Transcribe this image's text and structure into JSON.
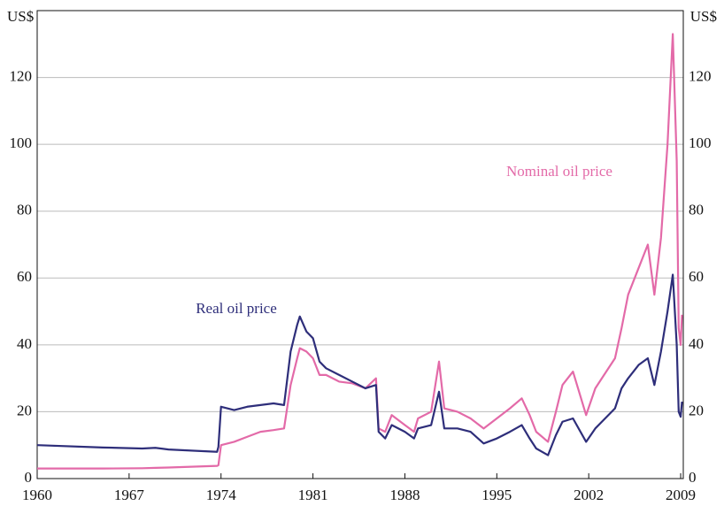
{
  "chart_data": {
    "type": "line",
    "y_label": "US$",
    "x": [
      1960,
      1965,
      1968,
      1969,
      1970,
      1973.7,
      1973.8,
      1974,
      1975,
      1976,
      1977,
      1978,
      1978.8,
      1979.3,
      1979.8,
      1980,
      1980.5,
      1981,
      1981.5,
      1982,
      1983,
      1984,
      1985,
      1985.8,
      1986,
      1986.5,
      1987,
      1988,
      1988.7,
      1989,
      1990,
      1990.6,
      1991,
      1992,
      1993,
      1994,
      1995,
      1996,
      1996.9,
      1997.5,
      1998,
      1998.9,
      1999.5,
      2000,
      2000.8,
      2001.8,
      2002.5,
      2003,
      2004,
      2004.5,
      2005,
      2005.8,
      2006.5,
      2007,
      2007.5,
      2008,
      2008.4,
      2008.7,
      2008.85,
      2009,
      2009.1
    ],
    "series": [
      {
        "name": "Real oil price",
        "color": "#2e2e7a",
        "values": [
          10,
          9.3,
          9,
          9.2,
          8.7,
          8,
          9.5,
          21.5,
          20.5,
          21.5,
          22,
          22.5,
          22,
          38,
          46,
          48.5,
          44,
          42,
          35,
          33,
          31,
          29,
          27,
          28,
          14,
          12,
          16,
          14,
          12,
          15,
          16,
          26,
          15,
          15,
          14,
          10.5,
          12,
          14,
          16,
          12,
          9,
          7,
          13,
          17,
          18,
          11,
          15,
          17,
          21,
          27,
          30,
          34,
          36,
          28,
          38,
          50,
          61,
          40,
          20,
          18.5,
          23
        ]
      },
      {
        "name": "Nominal oil price",
        "color": "#e36aa8",
        "values": [
          3,
          3,
          3.1,
          3.2,
          3.3,
          3.8,
          4,
          10,
          11,
          12.5,
          14,
          14.5,
          15,
          28,
          36,
          39,
          38,
          36,
          31,
          31,
          29,
          28.5,
          27,
          30,
          15,
          14,
          19,
          16,
          14,
          18,
          20,
          35,
          21,
          20,
          18,
          15,
          18,
          21,
          24,
          19,
          14,
          11,
          20,
          28,
          32,
          19,
          27,
          30,
          36,
          45,
          55,
          63,
          70,
          55,
          72,
          100,
          133,
          95,
          45,
          40,
          49
        ]
      }
    ],
    "xlim": [
      1960,
      2009.2
    ],
    "xticks": [
      1960,
      1967,
      1974,
      1981,
      1988,
      1995,
      2002,
      2009
    ],
    "ylim": [
      0,
      140
    ],
    "yticks": [
      0,
      20,
      40,
      60,
      80,
      100,
      120
    ],
    "grid": true
  }
}
